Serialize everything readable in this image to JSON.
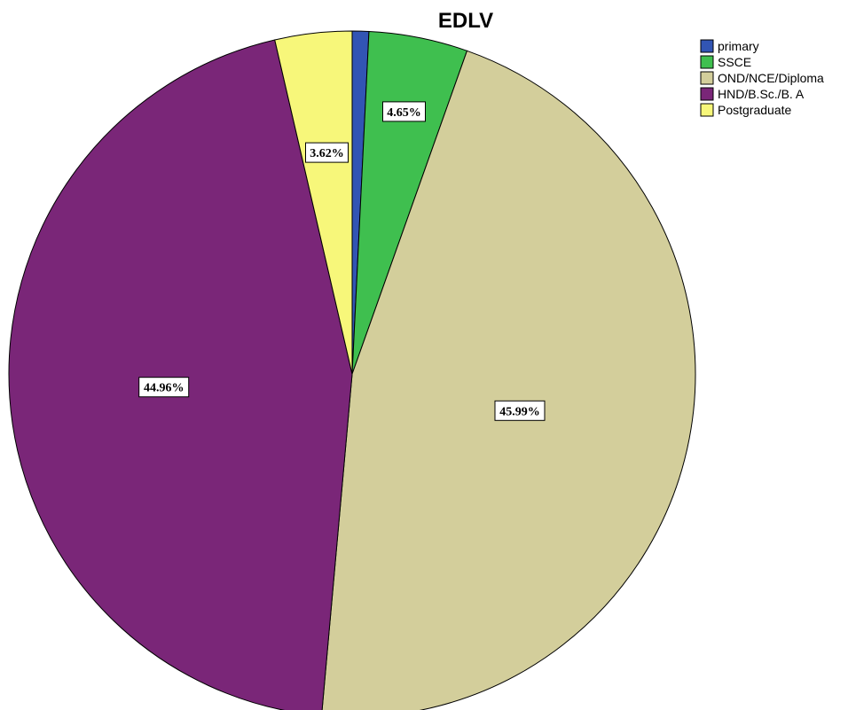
{
  "chart_data": {
    "type": "pie",
    "title": "EDLV",
    "categories": [
      "primary",
      "SSCE",
      "OND/NCE/Diploma",
      "HND/B.Sc./B. A",
      "Postgraduate"
    ],
    "values": [
      0.78,
      4.65,
      45.99,
      44.96,
      3.62
    ],
    "data_labels": [
      "",
      "4.65%",
      "45.99%",
      "44.96%",
      "3.62%"
    ],
    "colors": [
      "#3255b4",
      "#3fbf4f",
      "#d3ce9b",
      "#7a2678",
      "#f7f77a"
    ],
    "start_angle_deg": 0,
    "direction": "clockwise",
    "legend_position": "top-right"
  }
}
